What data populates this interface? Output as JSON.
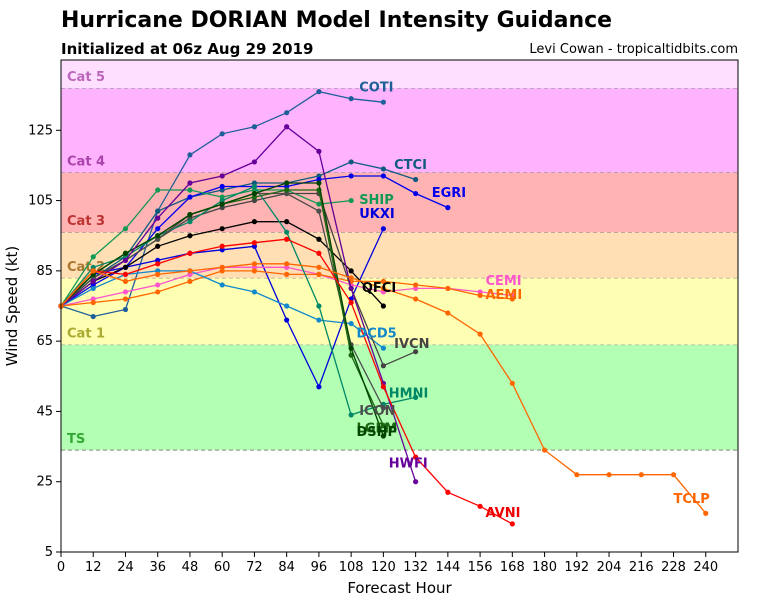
{
  "header": {
    "title": "Hurricane DORIAN Model Intensity Guidance",
    "subtitle": "Initialized at 06z Aug 29 2019",
    "credit": "Levi Cowan - tropicaltidbits.com"
  },
  "chart_data": {
    "type": "line",
    "title": "Hurricane DORIAN Model Intensity Guidance",
    "subtitle": "Initialized at 06z Aug 29 2019",
    "xlabel": "Forecast Hour",
    "ylabel": "Wind Speed (kt)",
    "xlim": [
      0,
      252
    ],
    "ylim": [
      5,
      145
    ],
    "xticks": [
      0,
      12,
      24,
      36,
      48,
      60,
      72,
      84,
      96,
      108,
      120,
      132,
      144,
      156,
      168,
      180,
      192,
      204,
      216,
      228,
      240
    ],
    "yticks": [
      5,
      25,
      45,
      65,
      85,
      105,
      125
    ],
    "bands": [
      {
        "label": "TS",
        "from": 34,
        "to": 64,
        "color": "#b3ffb3",
        "label_color": "#33aa33"
      },
      {
        "label": "Cat 1",
        "from": 64,
        "to": 83,
        "color": "#ffffb3",
        "label_color": "#aaaa33"
      },
      {
        "label": "Cat 2",
        "from": 83,
        "to": 96,
        "color": "#ffdfb3",
        "label_color": "#aa7733"
      },
      {
        "label": "Cat 3",
        "from": 96,
        "to": 113,
        "color": "#ffb3b3",
        "label_color": "#bb3333"
      },
      {
        "label": "Cat 4",
        "from": 113,
        "to": 137,
        "color": "#ffb3ff",
        "label_color": "#aa44aa"
      },
      {
        "label": "Cat 5",
        "from": 137,
        "to": 145,
        "color": "#ffdfff",
        "label_color": "#bb66bb"
      }
    ],
    "series": [
      {
        "name": "COTI",
        "color": "#1f5f99",
        "x": [
          0,
          12,
          24,
          36,
          48,
          60,
          72,
          84,
          96,
          108,
          120
        ],
        "y": [
          75,
          72,
          74,
          102,
          118,
          124,
          126,
          130,
          136,
          134,
          133
        ]
      },
      {
        "name": "CTCI",
        "color": "#105a80",
        "x": [
          0,
          12,
          24,
          36,
          48,
          60,
          72,
          84,
          96,
          108,
          120,
          132
        ],
        "y": [
          75,
          83,
          89,
          102,
          106,
          108,
          110,
          110,
          112,
          116,
          114,
          111
        ]
      },
      {
        "name": "EGRI",
        "color": "#0000ee",
        "x": [
          0,
          12,
          24,
          36,
          48,
          60,
          72,
          84,
          96,
          108,
          120,
          132,
          144
        ],
        "y": [
          75,
          81,
          86,
          97,
          106,
          109,
          109,
          109,
          111,
          112,
          112,
          107,
          103
        ]
      },
      {
        "name": "SHIP",
        "color": "#119955",
        "x": [
          0,
          12,
          24,
          36,
          48,
          60,
          72,
          84,
          96,
          108
        ],
        "y": [
          75,
          89,
          97,
          108,
          108,
          106,
          108,
          108,
          104,
          105
        ]
      },
      {
        "name": "UKXI",
        "color": "#0000dd",
        "x": [
          0,
          12,
          24,
          36,
          48,
          60,
          72,
          84,
          96,
          108,
          120
        ],
        "y": [
          75,
          84,
          86,
          88,
          90,
          91,
          92,
          71,
          52,
          77,
          97
        ]
      },
      {
        "name": "CEMI",
        "color": "#ff55cc",
        "x": [
          0,
          12,
          24,
          36,
          48,
          60,
          72,
          84,
          96,
          108,
          120,
          132,
          144,
          156,
          168
        ],
        "y": [
          75,
          77,
          79,
          81,
          84,
          86,
          86,
          86,
          84,
          81,
          79,
          80,
          80,
          79,
          78
        ]
      },
      {
        "name": "AEMI",
        "color": "#ff6600",
        "x": [
          0,
          12,
          24,
          36,
          48,
          60,
          72,
          84,
          96,
          108,
          120,
          132,
          144,
          156,
          168
        ],
        "y": [
          75,
          76,
          77,
          79,
          82,
          85,
          85,
          84,
          84,
          82,
          82,
          81,
          80,
          78,
          77
        ]
      },
      {
        "name": "QFCI",
        "color": "#000000",
        "x": [
          0,
          12,
          24,
          36,
          48,
          60,
          72,
          84,
          96,
          108,
          120
        ],
        "y": [
          75,
          82,
          86,
          92,
          95,
          97,
          99,
          99,
          94,
          85,
          75
        ]
      },
      {
        "name": "DCD5",
        "color": "#1188cc",
        "x": [
          0,
          12,
          24,
          36,
          48,
          60,
          72,
          84,
          96,
          108,
          120
        ],
        "y": [
          75,
          80,
          84,
          85,
          85,
          81,
          79,
          75,
          71,
          70,
          63
        ]
      },
      {
        "name": "IVCN",
        "color": "#444444",
        "x": [
          0,
          12,
          24,
          36,
          48,
          60,
          72,
          84,
          96,
          108,
          120,
          132
        ],
        "y": [
          75,
          83,
          88,
          94,
          100,
          103,
          105,
          107,
          107,
          80,
          58,
          62
        ]
      },
      {
        "name": "HMNI",
        "color": "#008866",
        "x": [
          0,
          12,
          24,
          36,
          48,
          60,
          72,
          84,
          96,
          108,
          120,
          132
        ],
        "y": [
          75,
          86,
          89,
          95,
          99,
          105,
          109,
          96,
          75,
          44,
          47,
          49
        ]
      },
      {
        "name": "ICON",
        "color": "#4d4d4d",
        "x": [
          0,
          12,
          24,
          36,
          48,
          60,
          72,
          84,
          96,
          108,
          120
        ],
        "y": [
          75,
          83,
          88,
          94,
          101,
          104,
          107,
          107,
          102,
          64,
          46
        ]
      },
      {
        "name": "LGEM",
        "color": "#1a6611",
        "x": [
          0,
          12,
          24,
          36,
          48,
          60,
          72,
          84,
          96,
          108,
          120
        ],
        "y": [
          75,
          84,
          90,
          95,
          101,
          104,
          106,
          108,
          108,
          61,
          41
        ]
      },
      {
        "name": "DSHP",
        "color": "#004400",
        "x": [
          0,
          12,
          24,
          36,
          48,
          60,
          72,
          84,
          96,
          108,
          120
        ],
        "y": [
          75,
          84,
          90,
          95,
          101,
          104,
          107,
          110,
          110,
          63,
          38
        ]
      },
      {
        "name": "HWFI",
        "color": "#660099",
        "x": [
          0,
          12,
          24,
          36,
          48,
          60,
          72,
          84,
          96,
          108,
          120,
          132
        ],
        "y": [
          75,
          82,
          88,
          100,
          110,
          112,
          116,
          126,
          119,
          80,
          53,
          25
        ]
      },
      {
        "name": "AVNI",
        "color": "#ff0000",
        "x": [
          0,
          12,
          24,
          36,
          48,
          60,
          72,
          84,
          96,
          108,
          120,
          132,
          144,
          156,
          168
        ],
        "y": [
          75,
          85,
          84,
          87,
          90,
          92,
          93,
          94,
          90,
          76,
          52,
          32,
          22,
          18,
          13
        ]
      },
      {
        "name": "TCLP",
        "color": "#ff6600",
        "x": [
          0,
          12,
          24,
          36,
          48,
          60,
          72,
          84,
          96,
          108,
          120,
          132,
          144,
          156,
          168,
          180,
          192,
          204,
          216,
          228,
          240
        ],
        "y": [
          75,
          85,
          82,
          84,
          85,
          86,
          87,
          87,
          86,
          83,
          80,
          77,
          73,
          67,
          53,
          34,
          27,
          27,
          27,
          27,
          16
        ]
      }
    ],
    "labels": [
      {
        "text": "COTI",
        "x": 111,
        "y": 136,
        "color": "#1f5f99"
      },
      {
        "text": "CTCI",
        "x": 124,
        "y": 114,
        "color": "#105a80"
      },
      {
        "text": "EGRI",
        "x": 138,
        "y": 106,
        "color": "#0000ee"
      },
      {
        "text": "SHIP",
        "x": 111,
        "y": 104,
        "color": "#119955"
      },
      {
        "text": "UKXI",
        "x": 111,
        "y": 100,
        "color": "#0000dd"
      },
      {
        "text": "CEMI",
        "x": 158,
        "y": 81,
        "color": "#ff55cc"
      },
      {
        "text": "AEMI",
        "x": 158,
        "y": 77,
        "color": "#ff6600"
      },
      {
        "text": "QFCI",
        "x": 112,
        "y": 79,
        "color": "#000000"
      },
      {
        "text": "DCD5",
        "x": 110,
        "y": 66,
        "color": "#1188cc"
      },
      {
        "text": "IVCN",
        "x": 124,
        "y": 63,
        "color": "#444444"
      },
      {
        "text": "HMNI",
        "x": 122,
        "y": 49,
        "color": "#008866"
      },
      {
        "text": "ICON",
        "x": 111,
        "y": 44,
        "color": "#4d4d4d"
      },
      {
        "text": "LGEM",
        "x": 110,
        "y": 39,
        "color": "#1a6611"
      },
      {
        "text": "DSHP",
        "x": 110,
        "y": 38,
        "color": "#004400"
      },
      {
        "text": "HWFI",
        "x": 122,
        "y": 29,
        "color": "#660099"
      },
      {
        "text": "AVNI",
        "x": 158,
        "y": 15,
        "color": "#ee0000"
      },
      {
        "text": "TCLP",
        "x": 228,
        "y": 19,
        "color": "#ff6600"
      }
    ]
  }
}
